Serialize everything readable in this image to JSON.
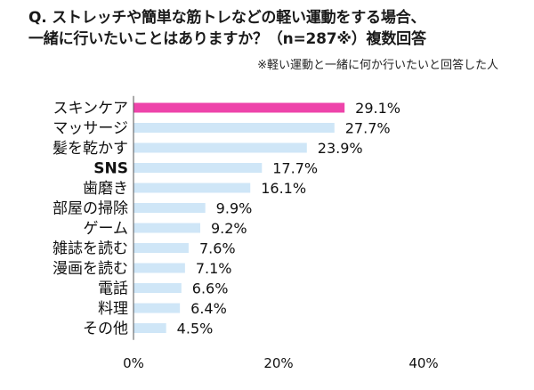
{
  "title_line1": "Q. ストレッチや簡単な筋トレなどの軽い運動をする場合、",
  "title_line2": "一緒に行いたいことはありますか？（n=287※）複数回答",
  "note": "※軽い運動と一緒に何か行いたいと回答した人",
  "colors": {
    "highlight": "#ee44aa",
    "bar": "#cfe6f7",
    "axis": "#555555"
  },
  "chart_data": {
    "type": "bar",
    "orientation": "horizontal",
    "categories": [
      "スキンケア",
      "マッサージ",
      "髪を乾かす",
      "SNS",
      "歯磨き",
      "部屋の掃除",
      "ゲーム",
      "雑誌を読む",
      "漫画を読む",
      "電話",
      "料理",
      "その他"
    ],
    "values": [
      29.1,
      27.7,
      23.9,
      17.7,
      16.1,
      9.9,
      9.2,
      7.6,
      7.1,
      6.6,
      6.4,
      4.5
    ],
    "value_labels": [
      "29.1%",
      "27.7%",
      "23.9%",
      "17.7%",
      "16.1%",
      "9.9%",
      "9.2%",
      "7.6%",
      "7.1%",
      "6.6%",
      "6.4%",
      "4.5%"
    ],
    "xlim": [
      0,
      40
    ],
    "xticks": [
      0,
      20,
      40
    ],
    "xtick_labels": [
      "0%",
      "20%",
      "40%"
    ],
    "highlight_index": 0
  }
}
